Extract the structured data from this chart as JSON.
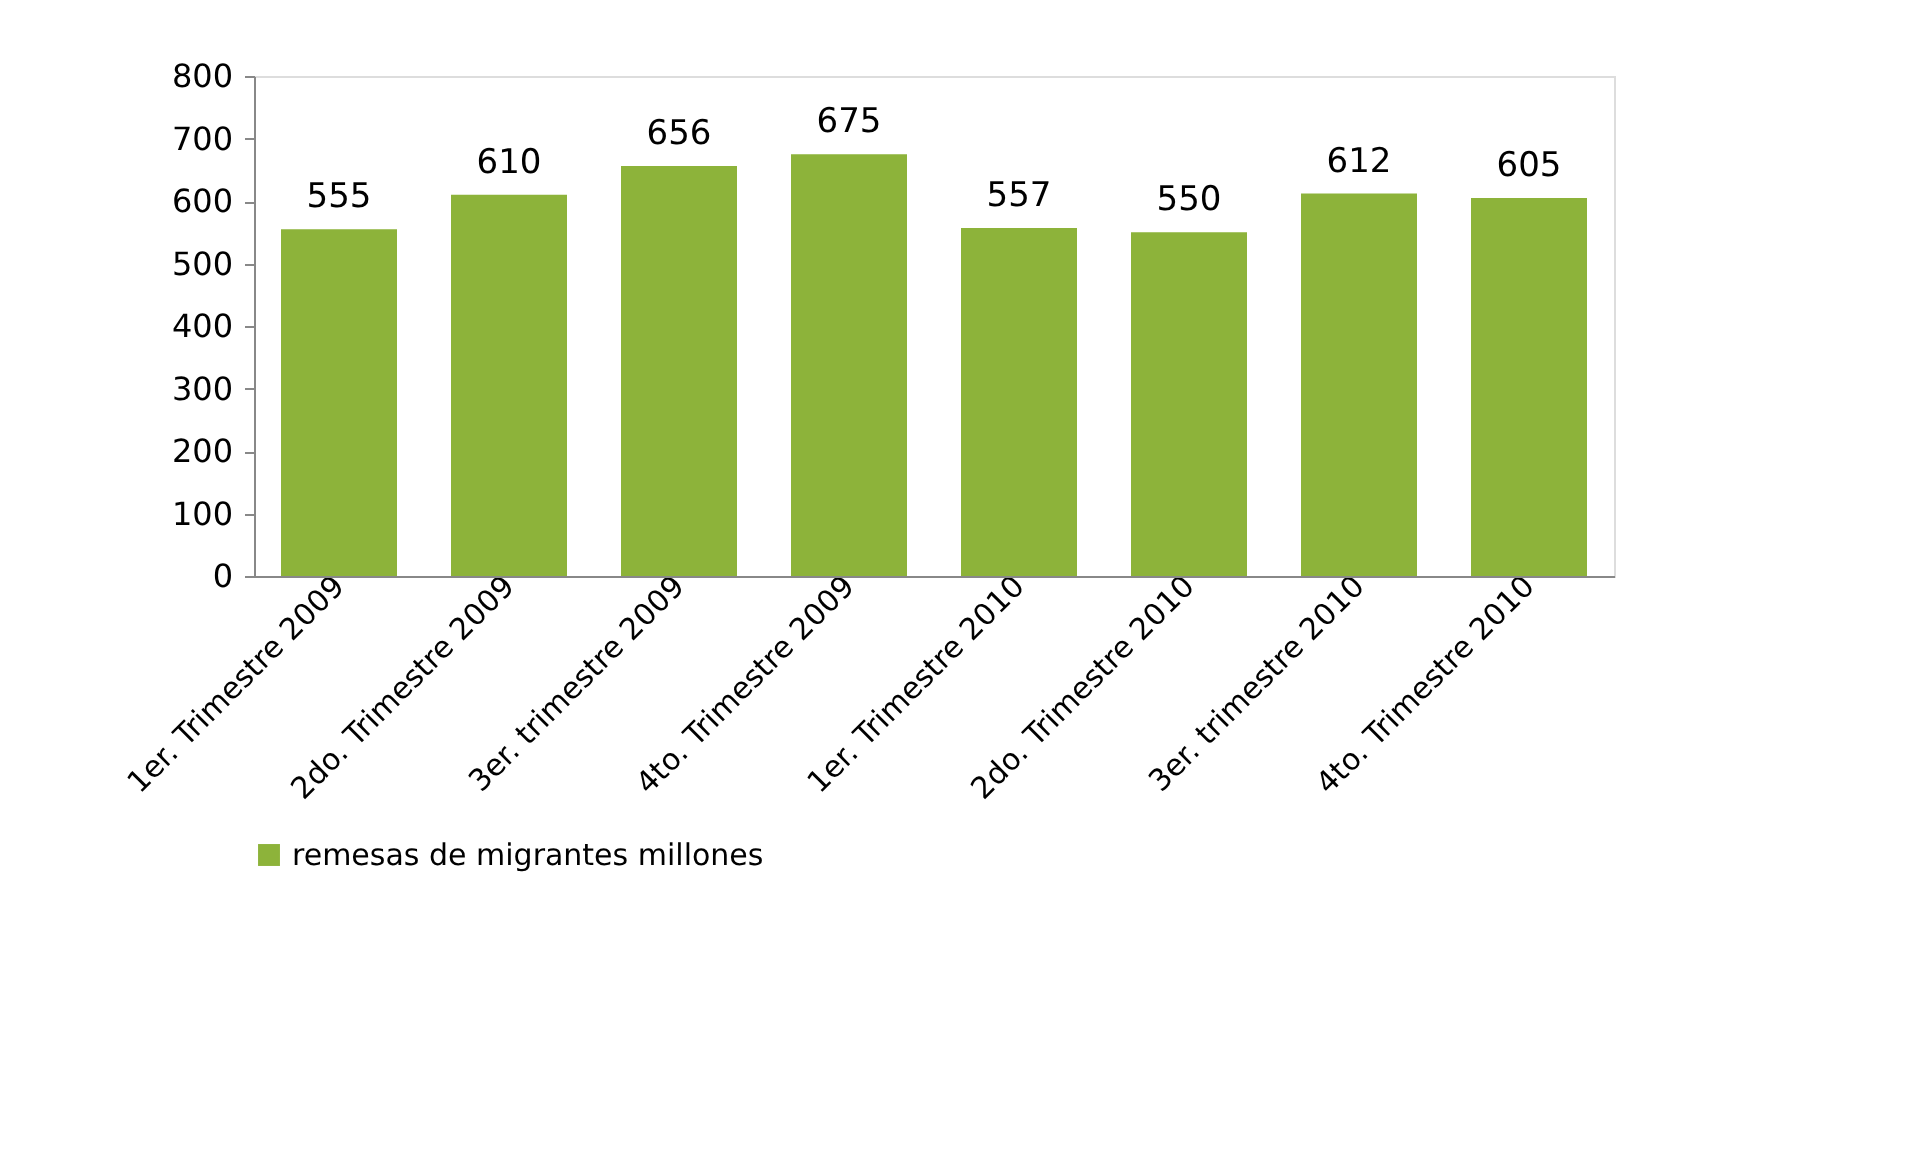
{
  "chart_data": {
    "type": "bar",
    "categories": [
      "1er. Trimestre 2009",
      "2do. Trimestre 2009",
      "3er. trimestre 2009",
      "4to. Trimestre 2009",
      "1er. Trimestre 2010",
      "2do. Trimestre 2010",
      "3er. trimestre 2010",
      "4to. Trimestre 2010"
    ],
    "series": [
      {
        "name": "remesas de migrantes  millones",
        "color": "#8db33a",
        "values": [
          555,
          610,
          656,
          675,
          557,
          550,
          612,
          605
        ]
      }
    ],
    "ylim": [
      0,
      800
    ],
    "yticks": [
      0,
      100,
      200,
      300,
      400,
      500,
      600,
      700,
      800
    ],
    "data_labels": true,
    "grid": false,
    "legend": "bottom"
  }
}
